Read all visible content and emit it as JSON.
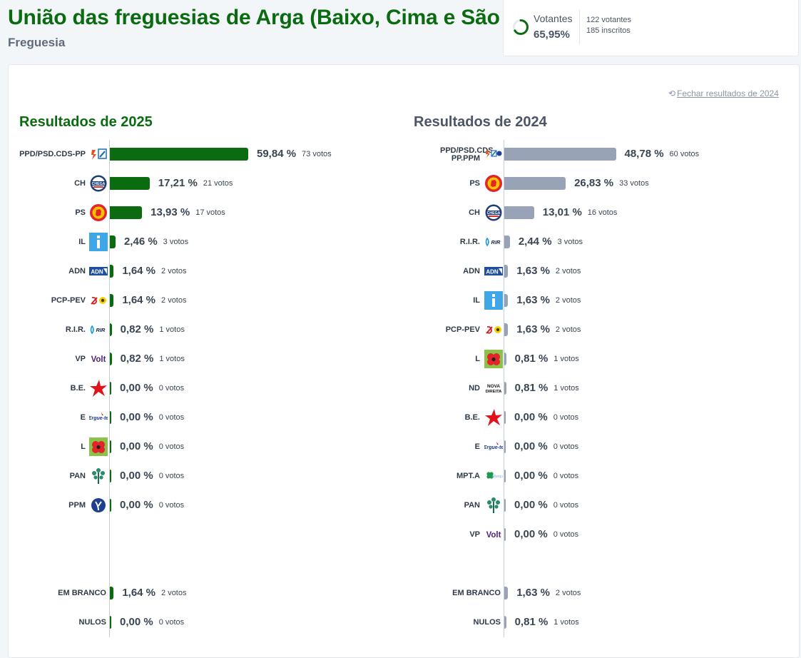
{
  "header": {
    "title": "União das freguesias de Arga (Baixo, Cima e São João)",
    "subtitle": "Freguesia"
  },
  "turnout": {
    "label": "Votantes",
    "percent": "65,95%",
    "percent_value": 65.95,
    "voters": "122 votantes",
    "registered": "185 inscritos",
    "ring_color": "#0b6b10"
  },
  "close_link": "Fechar resultados de 2024",
  "colors": {
    "bar_2025": "#0b6b10",
    "bar_2024": "#98a3b8",
    "heading_2025": "#0b6b10",
    "heading_2024": "#4a5565"
  },
  "chart_data": [
    {
      "type": "bar",
      "orientation": "horizontal",
      "title": "Resultados de 2025",
      "xlim": [
        0,
        100
      ],
      "rows": [
        {
          "party": "PPD/PSD.CDS-PP",
          "logo": "psd-cds-logo",
          "value": 59.84,
          "pct": "59,84 %",
          "votes": "73 votos"
        },
        {
          "party": "CH",
          "logo": "chega-logo",
          "value": 17.21,
          "pct": "17,21 %",
          "votes": "21 votos"
        },
        {
          "party": "PS",
          "logo": "ps-fist-logo",
          "value": 13.93,
          "pct": "13,93 %",
          "votes": "17 votos"
        },
        {
          "party": "IL",
          "logo": "il-logo",
          "value": 2.46,
          "pct": "2,46 %",
          "votes": "3 votos"
        },
        {
          "party": "ADN",
          "logo": "adn-logo",
          "value": 1.64,
          "pct": "1,64 %",
          "votes": "2 votos"
        },
        {
          "party": "PCP-PEV",
          "logo": "cdu-logo",
          "value": 1.64,
          "pct": "1,64 %",
          "votes": "2 votos"
        },
        {
          "party": "R.I.R.",
          "logo": "rir-logo",
          "value": 0.82,
          "pct": "0,82 %",
          "votes": "1 votos"
        },
        {
          "party": "VP",
          "logo": "volt-logo",
          "value": 0.82,
          "pct": "0,82 %",
          "votes": "1 votos"
        },
        {
          "party": "B.E.",
          "logo": "be-star-logo",
          "value": 0.0,
          "pct": "0,00 %",
          "votes": "0 votos"
        },
        {
          "party": "E",
          "logo": "ergue-te-logo",
          "value": 0.0,
          "pct": "0,00 %",
          "votes": "0 votos"
        },
        {
          "party": "L",
          "logo": "livre-poppy-logo",
          "value": 0.0,
          "pct": "0,00 %",
          "votes": "0 votos"
        },
        {
          "party": "PAN",
          "logo": "pan-tree-logo",
          "value": 0.0,
          "pct": "0,00 %",
          "votes": "0 votos"
        },
        {
          "party": "PPM",
          "logo": "ppm-logo",
          "value": 0.0,
          "pct": "0,00 %",
          "votes": "0 votos"
        }
      ],
      "extra_rows": [
        {
          "party": "EM BRANCO",
          "value": 1.64,
          "pct": "1,64 %",
          "votes": "2 votos"
        },
        {
          "party": "NULOS",
          "value": 0.0,
          "pct": "0,00 %",
          "votes": "0 votos"
        }
      ]
    },
    {
      "type": "bar",
      "orientation": "horizontal",
      "title": "Resultados de 2024",
      "xlim": [
        0,
        100
      ],
      "rows": [
        {
          "party": "PPD/PSD.CDS-PP.PPM",
          "logo": "ad-logo",
          "value": 48.78,
          "pct": "48,78 %",
          "votes": "60 votos"
        },
        {
          "party": "PS",
          "logo": "ps-fist-logo",
          "value": 26.83,
          "pct": "26,83 %",
          "votes": "33 votos"
        },
        {
          "party": "CH",
          "logo": "chega-logo",
          "value": 13.01,
          "pct": "13,01 %",
          "votes": "16 votos"
        },
        {
          "party": "R.I.R.",
          "logo": "rir-logo",
          "value": 2.44,
          "pct": "2,44 %",
          "votes": "3 votos"
        },
        {
          "party": "ADN",
          "logo": "adn-logo",
          "value": 1.63,
          "pct": "1,63 %",
          "votes": "2 votos"
        },
        {
          "party": "IL",
          "logo": "il-logo",
          "value": 1.63,
          "pct": "1,63 %",
          "votes": "2 votos"
        },
        {
          "party": "PCP-PEV",
          "logo": "cdu-logo",
          "value": 1.63,
          "pct": "1,63 %",
          "votes": "2 votos"
        },
        {
          "party": "L",
          "logo": "livre-poppy-logo",
          "value": 0.81,
          "pct": "0,81 %",
          "votes": "1 votos"
        },
        {
          "party": "ND",
          "logo": "nova-direita-logo",
          "value": 0.81,
          "pct": "0,81 %",
          "votes": "1 votos"
        },
        {
          "party": "B.E.",
          "logo": "be-star-logo",
          "value": 0.0,
          "pct": "0,00 %",
          "votes": "0 votos"
        },
        {
          "party": "E",
          "logo": "ergue-te-logo",
          "value": 0.0,
          "pct": "0,00 %",
          "votes": "0 votos"
        },
        {
          "party": "MPT.A",
          "logo": "mpt-clover-logo",
          "value": 0.0,
          "pct": "0,00 %",
          "votes": "0 votos"
        },
        {
          "party": "PAN",
          "logo": "pan-tree-logo",
          "value": 0.0,
          "pct": "0,00 %",
          "votes": "0 votos"
        },
        {
          "party": "VP",
          "logo": "volt-logo",
          "value": 0.0,
          "pct": "0,00 %",
          "votes": "0 votos"
        }
      ],
      "extra_rows": [
        {
          "party": "EM BRANCO",
          "value": 1.63,
          "pct": "1,63 %",
          "votes": "2 votos"
        },
        {
          "party": "NULOS",
          "value": 0.81,
          "pct": "0,81 %",
          "votes": "1 votos"
        }
      ]
    }
  ]
}
